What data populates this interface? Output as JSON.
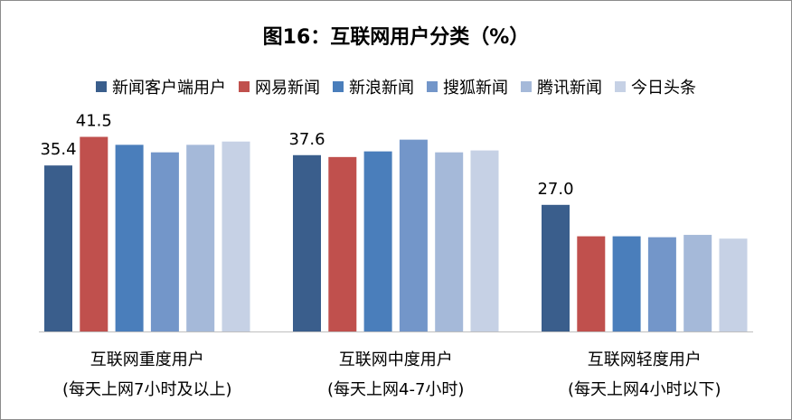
{
  "chart_data": {
    "type": "bar",
    "title": "图16：互联网用户分类（%）",
    "categories": [
      [
        "互联网重度用户",
        "(每天上网7小时及以上)"
      ],
      [
        "互联网中度用户",
        "(每天上网4-7小时)"
      ],
      [
        "互联网轻度用户",
        "(每天上网4小时以下)"
      ]
    ],
    "series": [
      {
        "name": "新闻客户端用户",
        "color": "#3a5e8c",
        "values": [
          35.4,
          37.6,
          27.0
        ],
        "labels": [
          "35.4",
          "37.6",
          "27.0"
        ]
      },
      {
        "name": "网易新闻",
        "color": "#c0504d",
        "values": [
          41.5,
          37.2,
          20.3
        ],
        "labels": [
          "41.5",
          "",
          ""
        ]
      },
      {
        "name": "新浪新闻",
        "color": "#4a7ebb",
        "values": [
          39.8,
          38.4,
          20.3
        ],
        "labels": [
          "",
          "",
          ""
        ]
      },
      {
        "name": "搜狐新闻",
        "color": "#7396c9",
        "values": [
          38.2,
          40.9,
          20.1
        ],
        "labels": [
          "",
          "",
          ""
        ]
      },
      {
        "name": "腾讯新闻",
        "color": "#a5b9d9",
        "values": [
          39.8,
          38.2,
          20.6
        ],
        "labels": [
          "",
          "",
          ""
        ]
      },
      {
        "name": "今日头条",
        "color": "#c6d1e5",
        "values": [
          40.5,
          38.6,
          19.8
        ],
        "labels": [
          "",
          "",
          ""
        ]
      }
    ],
    "ylim": [
      0,
      52
    ],
    "grid": false,
    "legend": "top"
  }
}
